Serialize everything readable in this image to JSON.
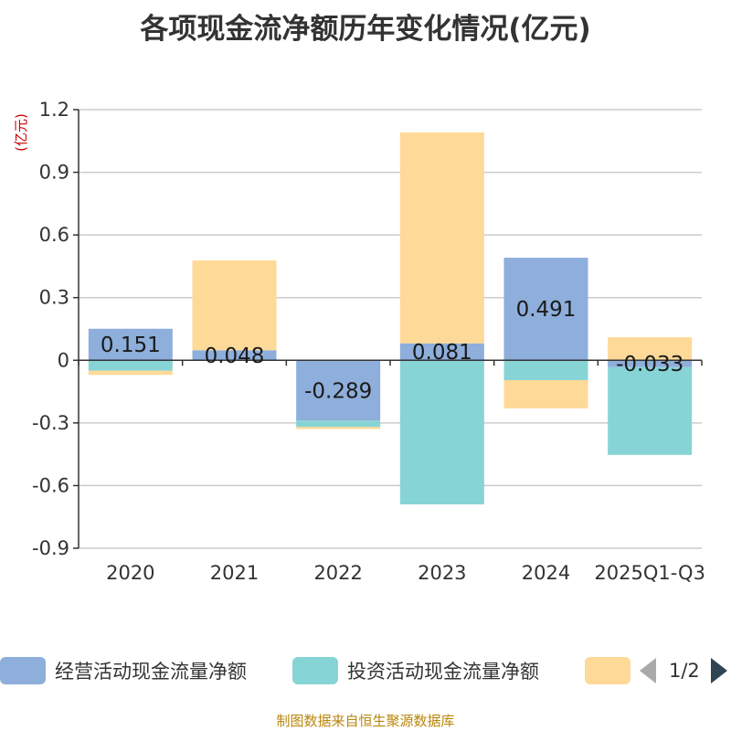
{
  "title": "各项现金流净额历年变化情况(亿元)",
  "unit": "(亿元)",
  "source": "制图数据来自恒生聚源数据库",
  "legend": {
    "items": [
      {
        "label": "经营活动现金流量净额",
        "color": "#8eaedb"
      },
      {
        "label": "投资活动现金流量净额",
        "color": "#87d4d6"
      },
      {
        "label": "",
        "color": "#fed997"
      }
    ],
    "page": "1/2"
  },
  "chart_data": {
    "type": "bar",
    "stacked": true,
    "title": "各项现金流净额历年变化情况(亿元)",
    "ylabel": "(亿元)",
    "ylim": [
      -0.9,
      1.2
    ],
    "yticks": [
      "1.2",
      "0.9",
      "0.6",
      "0.3",
      "0",
      "-0.3",
      "-0.6",
      "-0.9"
    ],
    "ytick_values": [
      1.2,
      0.9,
      0.6,
      0.3,
      0,
      -0.3,
      -0.6,
      -0.9
    ],
    "categories": [
      "2020",
      "2021",
      "2022",
      "2023",
      "2024",
      "2025Q1-Q3"
    ],
    "series": [
      {
        "name": "经营活动现金流量净额",
        "color": "#8eaedb",
        "values": [
          0.151,
          0.048,
          -0.289,
          0.081,
          0.491,
          -0.033
        ],
        "labels": [
          "0.151",
          "0.048",
          "-0.289",
          "0.081",
          "0.491",
          "-0.033"
        ]
      },
      {
        "name": "投资活动现金流量净额",
        "color": "#87d4d6",
        "values": [
          -0.05,
          0,
          -0.03,
          -0.69,
          -0.095,
          -0.42
        ]
      },
      {
        "name": "",
        "color": "#fed997",
        "values": [
          -0.02,
          0.43,
          -0.01,
          1.01,
          -0.135,
          0.11
        ]
      }
    ]
  }
}
